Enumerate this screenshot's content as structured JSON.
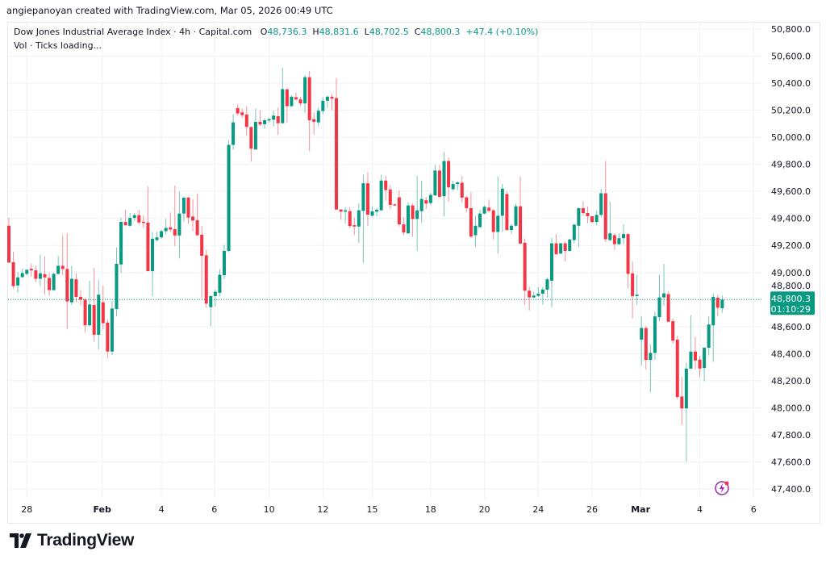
{
  "credit": "angiepanoyan created with TradingView.com, Mar 05, 2026 00:49 UTC",
  "legend": {
    "symbol": "Dow Jones Industrial Average Index · 4h · Capital.com",
    "open_label": "O",
    "open": "48,736.3",
    "high_label": "H",
    "high": "48,831.6",
    "low_label": "L",
    "low": "48,702.5",
    "close_label": "C",
    "close": "48,800.3",
    "change": "+47.4 (+0.10%)",
    "volume_line": "Vol · Ticks loading..."
  },
  "last_price": {
    "value": "48,800.3",
    "countdown": "01:10:29"
  },
  "brand": "TradingView",
  "colors": {
    "up": "#089981",
    "down": "#F23645",
    "grid": "#f0f1f3",
    "text": "#131722",
    "alert": "#9c27b0"
  },
  "chart_data": {
    "type": "candlestick",
    "title": "Dow Jones Industrial Average Index · 4h · Capital.com",
    "interval": "4h",
    "ylim": [
      47300,
      50900
    ],
    "y_ticks": [
      "50,800.0",
      "50,600.0",
      "50,400.0",
      "50,200.0",
      "50,000.0",
      "49,800.0",
      "49,600.0",
      "49,400.0",
      "49,200.0",
      "49,000.0",
      "48,800.0",
      "48,600.0",
      "48,400.0",
      "48,200.0",
      "48,000.0",
      "47,800.0",
      "47,600.0",
      "47,400.0"
    ],
    "y_tick_values": [
      50800,
      50600,
      50400,
      50200,
      50000,
      49800,
      49600,
      49400,
      49200,
      49000,
      48800,
      48600,
      48400,
      48200,
      48000,
      47800,
      47600,
      47400
    ],
    "x_ticks": [
      {
        "label": "28",
        "index": 4,
        "bold": false
      },
      {
        "label": "Feb",
        "index": 20.8,
        "bold": true
      },
      {
        "label": "4",
        "index": 34,
        "bold": false
      },
      {
        "label": "6",
        "index": 45.8,
        "bold": false
      },
      {
        "label": "10",
        "index": 58,
        "bold": false
      },
      {
        "label": "12",
        "index": 70,
        "bold": false
      },
      {
        "label": "15",
        "index": 81,
        "bold": false
      },
      {
        "label": "18",
        "index": 94,
        "bold": false
      },
      {
        "label": "20",
        "index": 106,
        "bold": false
      },
      {
        "label": "24",
        "index": 118,
        "bold": false
      },
      {
        "label": "26",
        "index": 130,
        "bold": false
      },
      {
        "label": "Mar",
        "index": 140.8,
        "bold": true
      },
      {
        "label": "4",
        "index": 154,
        "bold": false
      },
      {
        "label": "6",
        "index": 166,
        "bold": false
      }
    ],
    "candles_ohlc": [
      [
        49346,
        49406,
        49070,
        49074
      ],
      [
        49076,
        49154,
        48880,
        48900
      ],
      [
        48904,
        49004,
        48850,
        48964
      ],
      [
        48966,
        49030,
        48960,
        48996
      ],
      [
        48990,
        49024,
        48980,
        49020
      ],
      [
        49028,
        49066,
        48970,
        49016
      ],
      [
        49016,
        49050,
        48930,
        48954
      ],
      [
        48954,
        49130,
        48900,
        48994
      ],
      [
        48988,
        49120,
        48840,
        48964
      ],
      [
        48960,
        48996,
        48830,
        48870
      ],
      [
        48870,
        49000,
        48864,
        48990
      ],
      [
        48990,
        49124,
        48984,
        49050
      ],
      [
        49050,
        49276,
        48980,
        49026
      ],
      [
        49026,
        49290,
        48580,
        48786
      ],
      [
        48780,
        49050,
        48760,
        48954
      ],
      [
        48950,
        48994,
        48780,
        48820
      ],
      [
        48820,
        48870,
        48760,
        48800
      ],
      [
        48800,
        48810,
        48560,
        48610
      ],
      [
        48610,
        48940,
        48600,
        48764
      ],
      [
        48760,
        49034,
        48490,
        48540
      ],
      [
        48540,
        48946,
        48430,
        48836
      ],
      [
        48780,
        48904,
        48580,
        48626
      ],
      [
        48630,
        48654,
        48370,
        48416
      ],
      [
        48416,
        48790,
        48390,
        48734
      ],
      [
        48730,
        49184,
        48676,
        49064
      ],
      [
        49060,
        49404,
        48996,
        49374
      ],
      [
        49374,
        49464,
        49344,
        49350
      ],
      [
        49346,
        49440,
        49340,
        49404
      ],
      [
        49404,
        49440,
        49380,
        49424
      ],
      [
        49424,
        49464,
        49356,
        49370
      ],
      [
        49376,
        49424,
        49330,
        49366
      ],
      [
        49370,
        49636,
        49010,
        49010
      ],
      [
        49010,
        49300,
        48824,
        49250
      ],
      [
        49240,
        49300,
        49230,
        49260
      ],
      [
        49260,
        49316,
        49250,
        49306
      ],
      [
        49306,
        49396,
        49280,
        49330
      ],
      [
        49334,
        49444,
        49300,
        49318
      ],
      [
        49320,
        49644,
        49196,
        49274
      ],
      [
        49274,
        49600,
        49104,
        49436
      ],
      [
        49436,
        49554,
        49376,
        49554
      ],
      [
        49554,
        49560,
        49360,
        49406
      ],
      [
        49414,
        49540,
        49304,
        49384
      ],
      [
        49386,
        49584,
        49270,
        49276
      ],
      [
        49280,
        49344,
        48810,
        49124
      ],
      [
        49128,
        49170,
        48740,
        48770
      ],
      [
        48744,
        48830,
        48604,
        48826
      ],
      [
        48826,
        48874,
        48746,
        48858
      ],
      [
        48850,
        49026,
        48824,
        48984
      ],
      [
        48980,
        49204,
        48950,
        49160
      ],
      [
        49160,
        49980,
        49150,
        49944
      ],
      [
        49944,
        50170,
        49910,
        50110
      ],
      [
        50216,
        50246,
        50160,
        50176
      ],
      [
        50184,
        50210,
        50144,
        50164
      ],
      [
        50168,
        50230,
        50010,
        50076
      ],
      [
        50076,
        50080,
        49820,
        49916
      ],
      [
        49910,
        50210,
        49910,
        50114
      ],
      [
        50114,
        50200,
        50084,
        50094
      ],
      [
        50096,
        50140,
        50064,
        50126
      ],
      [
        50124,
        50140,
        50110,
        50134
      ],
      [
        50130,
        50196,
        50080,
        50160
      ],
      [
        50156,
        50220,
        50016,
        50104
      ],
      [
        50104,
        50514,
        50104,
        50356
      ],
      [
        50354,
        50364,
        50110,
        50230
      ],
      [
        50230,
        50310,
        50224,
        50300
      ],
      [
        50296,
        50330,
        50274,
        50280
      ],
      [
        50280,
        50300,
        50230,
        50250
      ],
      [
        50250,
        50460,
        50180,
        50444
      ],
      [
        50444,
        50490,
        49896,
        50126
      ],
      [
        50134,
        50184,
        50020,
        50114
      ],
      [
        50110,
        50220,
        50080,
        50196
      ],
      [
        50194,
        50296,
        50170,
        50270
      ],
      [
        50270,
        50306,
        50216,
        50300
      ],
      [
        50300,
        50320,
        50200,
        50286
      ],
      [
        50290,
        50440,
        49460,
        49466
      ],
      [
        49466,
        49470,
        49390,
        49450
      ],
      [
        49450,
        49484,
        49364,
        49460
      ],
      [
        49454,
        49484,
        49330,
        49344
      ],
      [
        49350,
        49406,
        49276,
        49340
      ],
      [
        49340,
        49510,
        49220,
        49460
      ],
      [
        49456,
        49724,
        49070,
        49660
      ],
      [
        49660,
        49744,
        49346,
        49428
      ],
      [
        49420,
        49490,
        49414,
        49452
      ],
      [
        49450,
        49474,
        49416,
        49464
      ],
      [
        49460,
        49724,
        49460,
        49680
      ],
      [
        49680,
        49714,
        49530,
        49610
      ],
      [
        49614,
        49646,
        49466,
        49500
      ],
      [
        49504,
        49510,
        49490,
        49496
      ],
      [
        49556,
        49606,
        49340,
        49356
      ],
      [
        49356,
        49410,
        49276,
        49296
      ],
      [
        49290,
        49520,
        49286,
        49496
      ],
      [
        49496,
        49510,
        49264,
        49396
      ],
      [
        49396,
        49714,
        49160,
        49460
      ],
      [
        49454,
        49680,
        49370,
        49544
      ],
      [
        49534,
        49560,
        49470,
        49510
      ],
      [
        49514,
        49590,
        49500,
        49574
      ],
      [
        49570,
        49796,
        49566,
        49754
      ],
      [
        49754,
        49796,
        49550,
        49560
      ],
      [
        49564,
        49890,
        49416,
        49824
      ],
      [
        49824,
        49850,
        49524,
        49630
      ],
      [
        49616,
        49680,
        49604,
        49654
      ],
      [
        49654,
        49676,
        49610,
        49666
      ],
      [
        49664,
        49714,
        49516,
        49554
      ],
      [
        49556,
        49564,
        49444,
        49476
      ],
      [
        49476,
        49596,
        49256,
        49266
      ],
      [
        49276,
        49420,
        49190,
        49346
      ],
      [
        49336,
        49464,
        49330,
        49436
      ],
      [
        49436,
        49496,
        49430,
        49486
      ],
      [
        49480,
        49540,
        49444,
        49456
      ],
      [
        49460,
        49470,
        49244,
        49300
      ],
      [
        49300,
        49710,
        49140,
        49420
      ],
      [
        49420,
        49654,
        49300,
        49620
      ],
      [
        49580,
        49604,
        49310,
        49314
      ],
      [
        49314,
        49360,
        49286,
        49346
      ],
      [
        49346,
        49510,
        49340,
        49490
      ],
      [
        49490,
        49710,
        49210,
        49214
      ],
      [
        49220,
        49250,
        48760,
        48866
      ],
      [
        48866,
        48896,
        48720,
        48816
      ],
      [
        48816,
        48860,
        48810,
        48830
      ],
      [
        48828,
        48890,
        48820,
        48844
      ],
      [
        48844,
        48894,
        48764,
        48874
      ],
      [
        48874,
        48964,
        48816,
        48950
      ],
      [
        48940,
        49256,
        48744,
        49216
      ],
      [
        49216,
        49286,
        49130,
        49136
      ],
      [
        49140,
        49220,
        49136,
        49216
      ],
      [
        49216,
        49230,
        49080,
        49160
      ],
      [
        49160,
        49250,
        49154,
        49244
      ],
      [
        49240,
        49360,
        49216,
        49354
      ],
      [
        49346,
        49480,
        49190,
        49476
      ],
      [
        49476,
        49526,
        49420,
        49440
      ],
      [
        49440,
        49486,
        49366,
        49416
      ],
      [
        49416,
        49420,
        49366,
        49374
      ],
      [
        49374,
        49460,
        49350,
        49426
      ],
      [
        49426,
        49620,
        49410,
        49586
      ],
      [
        49586,
        49826,
        49226,
        49246
      ],
      [
        49240,
        49526,
        49230,
        49290
      ],
      [
        49276,
        49290,
        49164,
        49210
      ],
      [
        49210,
        49290,
        49204,
        49254
      ],
      [
        49254,
        49356,
        49210,
        49284
      ],
      [
        49284,
        49290,
        48884,
        48990
      ],
      [
        48994,
        49080,
        48660,
        48826
      ],
      [
        48826,
        48984,
        48760,
        48836
      ],
      [
        48504,
        48676,
        48314,
        48590
      ],
      [
        48590,
        48604,
        48284,
        48354
      ],
      [
        48354,
        48470,
        48114,
        48406
      ],
      [
        48406,
        48710,
        48354,
        48676
      ],
      [
        48670,
        48984,
        48640,
        48816
      ],
      [
        48816,
        49064,
        48754,
        48846
      ],
      [
        48840,
        48860,
        48636,
        48636
      ],
      [
        48640,
        48660,
        48474,
        48496
      ],
      [
        48504,
        48534,
        48064,
        48080
      ],
      [
        48084,
        48230,
        47876,
        47996
      ],
      [
        47996,
        48336,
        47604,
        48290
      ],
      [
        48290,
        48684,
        48286,
        48416
      ],
      [
        48416,
        48524,
        48284,
        48350
      ],
      [
        48356,
        48384,
        48224,
        48290
      ],
      [
        48294,
        48450,
        48196,
        48444
      ],
      [
        48444,
        48676,
        48386,
        48616
      ],
      [
        48610,
        48846,
        48340,
        48820
      ],
      [
        48814,
        48836,
        48676,
        48740
      ],
      [
        48736.3,
        48831.6,
        48702.5,
        48800.3
      ]
    ],
    "last_close": 48800.3
  }
}
